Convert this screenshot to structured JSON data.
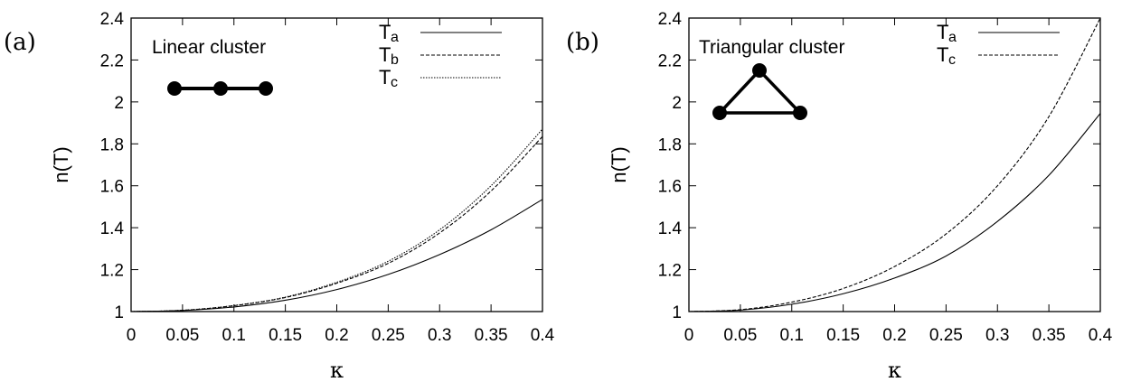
{
  "chart_data": [
    {
      "type": "line",
      "panel_label": "(a)",
      "title": "Linear cluster",
      "xlabel": "κ",
      "ylabel": "n(T)",
      "xlim": [
        0,
        0.4
      ],
      "ylim": [
        1,
        2.4
      ],
      "xticks": [
        "0",
        "0.05",
        "0.1",
        "0.15",
        "0.2",
        "0.25",
        "0.3",
        "0.35",
        "0.4"
      ],
      "yticks": [
        "1",
        "1.2",
        "1.4",
        "1.6",
        "1.8",
        "2",
        "2.2",
        "2.4"
      ],
      "x": [
        0,
        0.05,
        0.1,
        0.15,
        0.2,
        0.25,
        0.3,
        0.35,
        0.4
      ],
      "series": [
        {
          "name": "T",
          "sub": "a",
          "dash": "solid",
          "values": [
            1.0,
            1.005,
            1.022,
            1.054,
            1.105,
            1.177,
            1.272,
            1.39,
            1.535
          ]
        },
        {
          "name": "T",
          "sub": "b",
          "dash": "dashed",
          "values": [
            1.0,
            1.006,
            1.028,
            1.067,
            1.135,
            1.23,
            1.375,
            1.575,
            1.835
          ]
        },
        {
          "name": "T",
          "sub": "c",
          "dash": "dotted",
          "values": [
            1.0,
            1.006,
            1.029,
            1.069,
            1.14,
            1.24,
            1.39,
            1.6,
            1.87
          ]
        }
      ],
      "legend": "top-right",
      "inset": "linear"
    },
    {
      "type": "line",
      "panel_label": "(b)",
      "title": "Triangular cluster",
      "xlabel": "κ",
      "ylabel": "n(T)",
      "xlim": [
        0,
        0.4
      ],
      "ylim": [
        1,
        2.4
      ],
      "xticks": [
        "0",
        "0.05",
        "0.1",
        "0.15",
        "0.2",
        "0.25",
        "0.3",
        "0.35",
        "0.4"
      ],
      "yticks": [
        "1",
        "1.2",
        "1.4",
        "1.6",
        "1.8",
        "2",
        "2.2",
        "2.4"
      ],
      "x": [
        0,
        0.05,
        0.1,
        0.15,
        0.2,
        0.25,
        0.3,
        0.35,
        0.4
      ],
      "series": [
        {
          "name": "T",
          "sub": "a",
          "dash": "solid",
          "values": [
            1.0,
            1.007,
            1.035,
            1.085,
            1.16,
            1.265,
            1.43,
            1.65,
            1.945
          ]
        },
        {
          "name": "T",
          "sub": "c",
          "dash": "dashed",
          "values": [
            1.0,
            1.009,
            1.045,
            1.11,
            1.215,
            1.37,
            1.6,
            1.93,
            2.4
          ]
        }
      ],
      "legend": "top-right",
      "inset": "triangle"
    }
  ]
}
